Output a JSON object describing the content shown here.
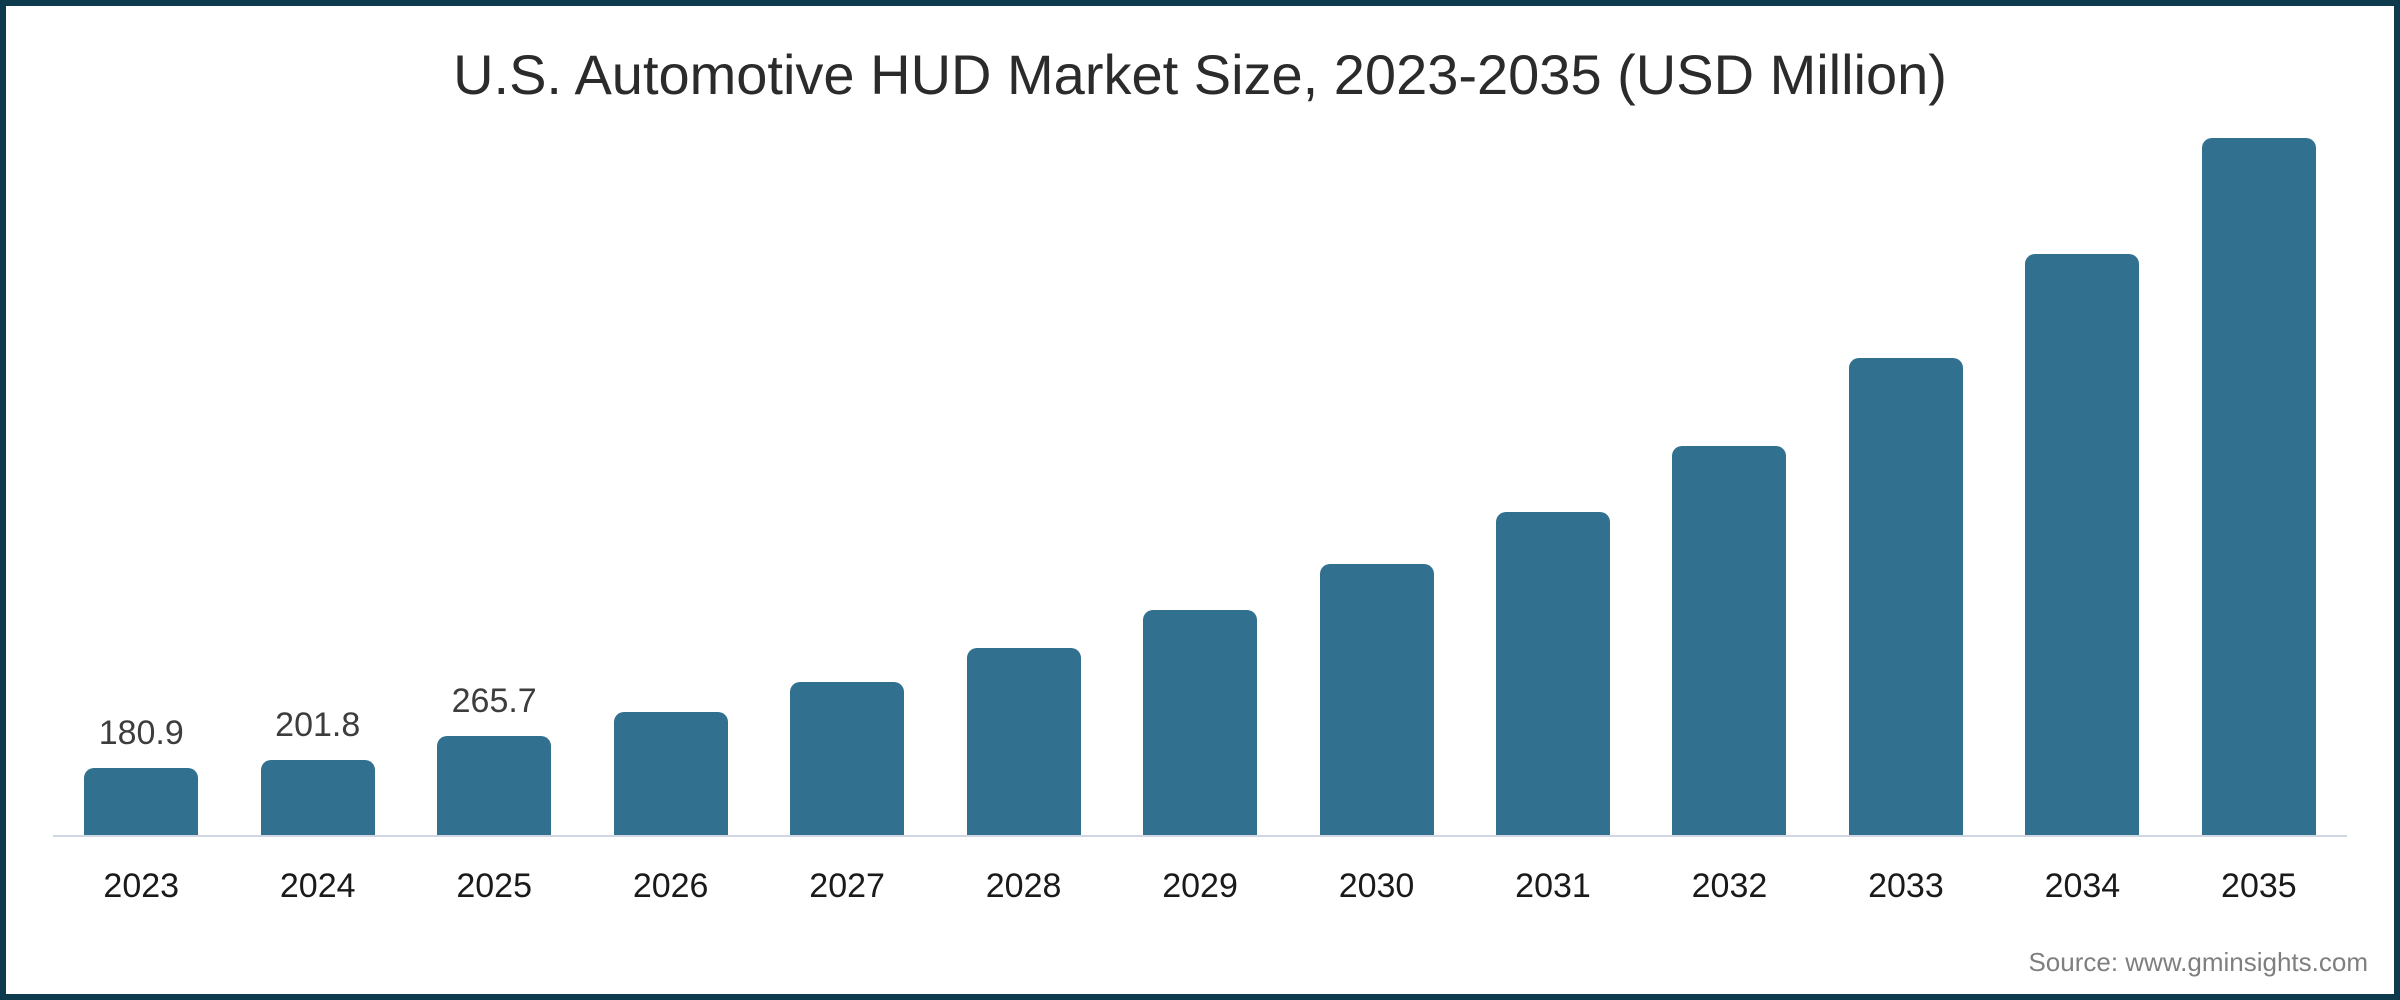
{
  "chart": {
    "source_label": "Source: www.gminsights.com"
  },
  "chart_data": {
    "type": "bar",
    "title": "U.S. Automotive HUD Market Size, 2023-2035 (USD Million)",
    "categories": [
      "2023",
      "2024",
      "2025",
      "2026",
      "2027",
      "2028",
      "2029",
      "2030",
      "2031",
      "2032",
      "2033",
      "2034",
      "2035"
    ],
    "values": [
      180.9,
      201.8,
      265.7,
      332,
      412,
      503,
      605,
      730,
      869,
      1046,
      1283,
      1563,
      1875
    ],
    "data_labels": [
      "180.9",
      "201.8",
      "265.7",
      "",
      "",
      "",
      "",
      "",
      "",
      "",
      "",
      "",
      ""
    ],
    "xlabel": "",
    "ylabel": "",
    "ylim": [
      0,
      1950
    ],
    "grid": false,
    "legend": "none",
    "colors": {
      "bar": "#31708f",
      "frame_border": "#0d3a4c",
      "axis_line": "#d0d7e2",
      "title": "#2b2b2b",
      "x_tick_label": "#1a1a1a",
      "value_label": "#3d3d3d",
      "source_text": "#7f7f7f",
      "background": "#ffffff"
    }
  }
}
